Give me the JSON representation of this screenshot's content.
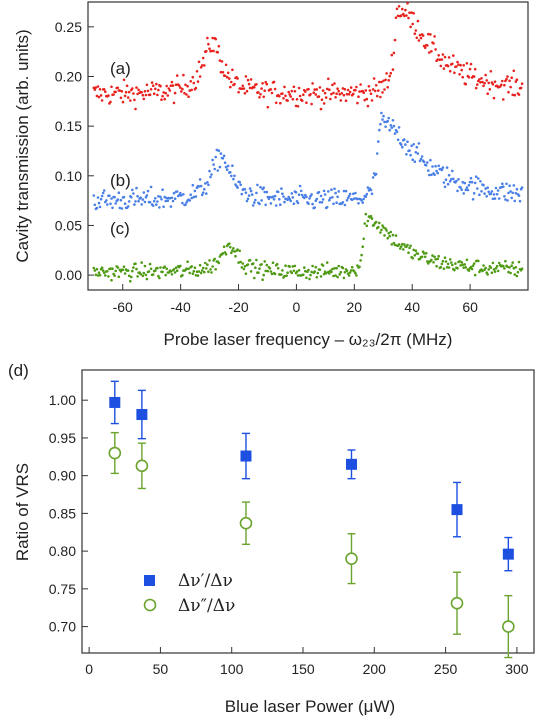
{
  "colors": {
    "red": "#e8231f",
    "blue": "#4a7fe6",
    "green": "#4f9a14",
    "square": "#1d4fe0",
    "circle": "#6aa32e"
  },
  "panel_top": {
    "xlabel": "Probe laser frequency – ω₂₃/2π (MHz)",
    "ylabel": "Cavity transmission (arb. units)",
    "xticks": [
      "-60",
      "-40",
      "-20",
      "0",
      "20",
      "40",
      "60"
    ],
    "yticks": [
      "0.00",
      "0.05",
      "0.10",
      "0.15",
      "0.20",
      "0.25"
    ],
    "curve_labels": [
      "(a)",
      "(b)",
      "(c)"
    ]
  },
  "panel_bottom": {
    "panel_label": "(d)",
    "xlabel": "Blue laser Power (μW)",
    "ylabel": "Ratio of VRS",
    "xticks": [
      "0",
      "50",
      "100",
      "150",
      "200",
      "250",
      "300"
    ],
    "yticks": [
      "0.70",
      "0.75",
      "0.80",
      "0.85",
      "0.90",
      "0.95",
      "1.00"
    ],
    "legend": [
      "Δν′/Δν",
      "Δν″/Δν"
    ]
  },
  "chart_data": [
    {
      "type": "scatter",
      "title": "",
      "xlabel": "Probe laser frequency – ω₂₃/2π (MHz)",
      "ylabel": "Cavity transmission (arb. units)",
      "xlim": [
        -72,
        80
      ],
      "ylim": [
        -0.015,
        0.275
      ],
      "grid": false,
      "series": [
        {
          "name": "(a)",
          "baseline": 0.182,
          "noise": 0.006,
          "peaks": [
            {
              "x": -29,
              "height": 0.052,
              "rise": 4,
              "decay": 4
            },
            {
              "x": 35,
              "height": 0.085,
              "rise": 1.5,
              "decay": 13
            }
          ]
        },
        {
          "name": "(b)",
          "baseline": 0.075,
          "noise": 0.0055,
          "peaks": [
            {
              "x": -26,
              "height": 0.045,
              "rise": 4,
              "decay": 4
            },
            {
              "x": 29,
              "height": 0.078,
              "rise": 1.2,
              "decay": 15
            }
          ]
        },
        {
          "name": "(c)",
          "baseline": 0.003,
          "noise": 0.004,
          "peaks": [
            {
              "x": -23,
              "height": 0.028,
              "rise": 3.5,
              "decay": 3.5
            },
            {
              "x": 24,
              "height": 0.054,
              "rise": 1.0,
              "decay": 12
            }
          ]
        }
      ]
    },
    {
      "type": "scatter",
      "title": "",
      "xlabel": "Blue laser Power (μW)",
      "ylabel": "Ratio of VRS",
      "xlim": [
        -5,
        312
      ],
      "ylim": [
        0.665,
        1.04
      ],
      "grid": false,
      "legend_position": "bottom-left",
      "series": [
        {
          "name": "Δν′/Δν",
          "marker": "filled-square",
          "x": [
            18,
            37,
            110,
            184,
            258,
            294
          ],
          "y": [
            0.997,
            0.981,
            0.926,
            0.915,
            0.855,
            0.796
          ],
          "err": [
            0.028,
            0.032,
            0.03,
            0.019,
            0.036,
            0.022
          ]
        },
        {
          "name": "Δν″/Δν",
          "marker": "open-circle",
          "x": [
            18,
            37,
            110,
            184,
            258,
            294
          ],
          "y": [
            0.93,
            0.913,
            0.837,
            0.79,
            0.731,
            0.7
          ],
          "err": [
            0.027,
            0.03,
            0.028,
            0.033,
            0.041,
            0.041
          ]
        }
      ]
    }
  ]
}
